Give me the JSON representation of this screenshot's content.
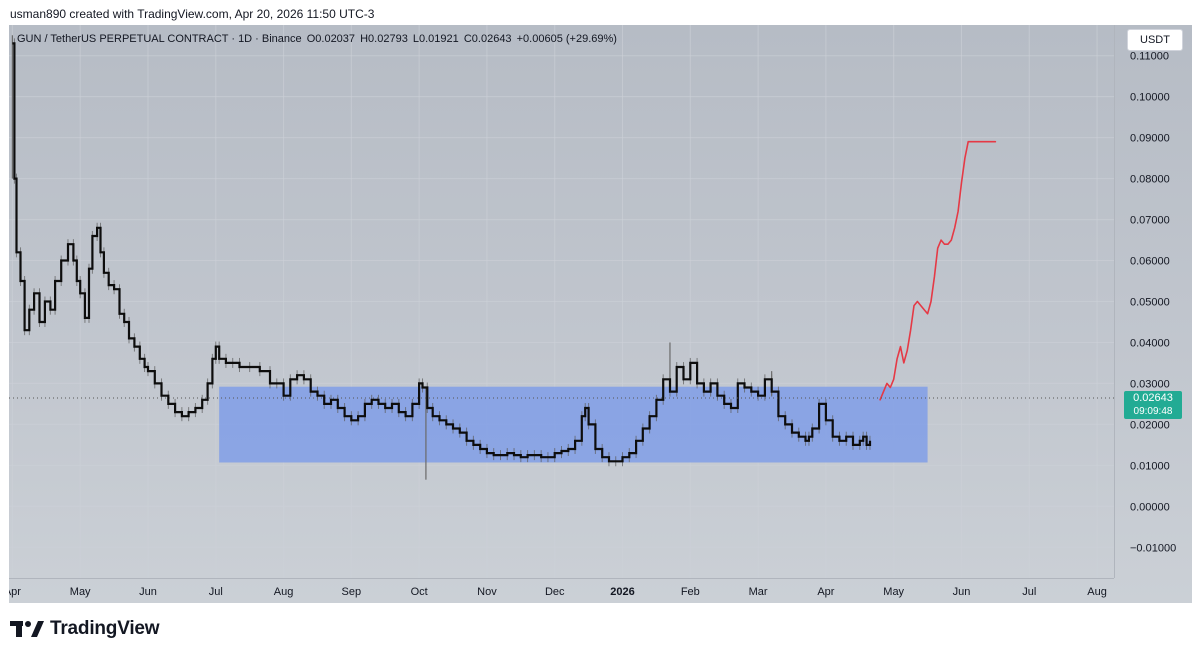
{
  "header": {
    "credit": "usman890 created with TradingView.com, Apr 20, 2026 11:50 UTC-3"
  },
  "legend": {
    "symbol": "GUN / TetherUS PERPETUAL CONTRACT · 1D · Binance",
    "open": "O0.02037",
    "high": "H0.02793",
    "low": "L0.01921",
    "close": "C0.02643",
    "change": "+0.00605 (+29.69%)"
  },
  "toolbar": {
    "currency_label": "USDT"
  },
  "last_price": {
    "value": "0.02643",
    "countdown": "09:09:48"
  },
  "brand": {
    "name": "TradingView"
  },
  "colors": {
    "candle": "#0d0d0d",
    "wick": "#5a5a5a",
    "range_box": "#7c9be8",
    "projection": "#e53945",
    "price_badge": "#22ab94",
    "grid": "#cdd1d8"
  },
  "chart_data": {
    "type": "line",
    "title": "",
    "xlabel": "",
    "ylabel": "",
    "y_tick_labels": [
      "0.11000",
      "0.10000",
      "0.09000",
      "0.08000",
      "0.07000",
      "0.06000",
      "0.05000",
      "0.04000",
      "0.03000",
      "0.02000",
      "0.01000",
      "0.00000",
      "−0.01000"
    ],
    "y_ticks": [
      0.11,
      0.1,
      0.09,
      0.08,
      0.07,
      0.06,
      0.05,
      0.04,
      0.03,
      0.02,
      0.01,
      0.0,
      -0.01
    ],
    "ylim": [
      -0.0175,
      0.1175
    ],
    "x_tick_labels": [
      "Apr",
      "May",
      "Jun",
      "Jul",
      "Aug",
      "Sep",
      "Oct",
      "Nov",
      "Dec",
      "2026",
      "Feb",
      "Mar",
      "Apr",
      "May",
      "Jun",
      "Jul",
      "Aug"
    ],
    "x_ticks_month_index": [
      0,
      1,
      2,
      3,
      4,
      5,
      6,
      7,
      8,
      9,
      10,
      11,
      12,
      13,
      14,
      15,
      16
    ],
    "xlim_month_index": [
      -0.05,
      16.25
    ],
    "grid": true,
    "series": [
      {
        "x_month_index": [
          0.0,
          0.03,
          0.06,
          0.12,
          0.18,
          0.25,
          0.32,
          0.4,
          0.48,
          0.56,
          0.63,
          0.72,
          0.82,
          0.9,
          0.95,
          1.0,
          1.07,
          1.13,
          1.18,
          1.25,
          1.3,
          1.35,
          1.42,
          1.5,
          1.58,
          1.65,
          1.72,
          1.8,
          1.88,
          1.95,
          2.0,
          2.1,
          2.2,
          2.3,
          2.4,
          2.5,
          2.6,
          2.7,
          2.8,
          2.88,
          2.95,
          3.0,
          3.05,
          3.15,
          3.25,
          3.35,
          3.5,
          3.65,
          3.8,
          3.9,
          4.0,
          4.1,
          4.2,
          4.3,
          4.4,
          4.5,
          4.6,
          4.7,
          4.8,
          4.9,
          5.0,
          5.1,
          5.2,
          5.3,
          5.4,
          5.5,
          5.6,
          5.7,
          5.8,
          5.9,
          6.0,
          6.05,
          6.12,
          6.2,
          6.3,
          6.4,
          6.5,
          6.6,
          6.7,
          6.8,
          6.9,
          7.0,
          7.1,
          7.2,
          7.3,
          7.4,
          7.5,
          7.6,
          7.7,
          7.8,
          7.9,
          8.0,
          8.1,
          8.2,
          8.3,
          8.4,
          8.45,
          8.5,
          8.6,
          8.7,
          8.8,
          8.9,
          9.0,
          9.1,
          9.2,
          9.3,
          9.4,
          9.5,
          9.6,
          9.7,
          9.8,
          9.9,
          10.0,
          10.1,
          10.2,
          10.3,
          10.4,
          10.5,
          10.6,
          10.7,
          10.8,
          10.9,
          11.0,
          11.1,
          11.2,
          11.3,
          11.4,
          11.5,
          11.6,
          11.7,
          11.75,
          11.8,
          11.9,
          12.0,
          12.1,
          12.2,
          12.3,
          12.4,
          12.5,
          12.55,
          12.6,
          12.65
        ],
        "y": [
          0.113,
          0.08,
          0.062,
          0.055,
          0.043,
          0.048,
          0.052,
          0.045,
          0.05,
          0.048,
          0.055,
          0.06,
          0.064,
          0.06,
          0.055,
          0.052,
          0.046,
          0.058,
          0.066,
          0.068,
          0.062,
          0.057,
          0.054,
          0.053,
          0.047,
          0.045,
          0.041,
          0.039,
          0.036,
          0.034,
          0.033,
          0.03,
          0.027,
          0.025,
          0.023,
          0.022,
          0.023,
          0.024,
          0.026,
          0.03,
          0.036,
          0.039,
          0.036,
          0.035,
          0.035,
          0.034,
          0.034,
          0.033,
          0.03,
          0.03,
          0.027,
          0.031,
          0.032,
          0.031,
          0.028,
          0.027,
          0.025,
          0.026,
          0.024,
          0.022,
          0.021,
          0.022,
          0.025,
          0.026,
          0.025,
          0.024,
          0.025,
          0.023,
          0.022,
          0.025,
          0.03,
          0.029,
          0.024,
          0.022,
          0.021,
          0.02,
          0.019,
          0.018,
          0.016,
          0.015,
          0.014,
          0.013,
          0.0125,
          0.0125,
          0.013,
          0.0125,
          0.012,
          0.0125,
          0.0125,
          0.012,
          0.012,
          0.013,
          0.0135,
          0.014,
          0.016,
          0.022,
          0.024,
          0.02,
          0.014,
          0.012,
          0.011,
          0.011,
          0.012,
          0.013,
          0.016,
          0.019,
          0.022,
          0.026,
          0.031,
          0.028,
          0.034,
          0.031,
          0.035,
          0.03,
          0.028,
          0.03,
          0.027,
          0.025,
          0.024,
          0.03,
          0.029,
          0.028,
          0.027,
          0.031,
          0.028,
          0.022,
          0.02,
          0.018,
          0.017,
          0.016,
          0.017,
          0.019,
          0.025,
          0.021,
          0.017,
          0.016,
          0.017,
          0.015,
          0.016,
          0.017,
          0.015,
          0.016,
          0.019,
          0.025
        ]
      },
      {
        "x_month_index": [
          12.8,
          12.9,
          12.95,
          13.0,
          13.05,
          13.1,
          13.15,
          13.2,
          13.25,
          13.3,
          13.35,
          13.4,
          13.45,
          13.5,
          13.55,
          13.6,
          13.65,
          13.7,
          13.75,
          13.8,
          13.85,
          13.9,
          13.95,
          14.0,
          14.05,
          14.1,
          14.15,
          14.2,
          14.25,
          14.3,
          14.35,
          14.4,
          14.45,
          14.5,
          14.55,
          14.6,
          14.65,
          14.7
        ],
        "y": [
          0.026,
          0.03,
          0.029,
          0.031,
          0.036,
          0.039,
          0.035,
          0.038,
          0.043,
          0.049,
          0.05,
          0.049,
          0.048,
          0.047,
          0.05,
          0.056,
          0.063,
          0.065,
          0.064,
          0.064,
          0.065,
          0.068,
          0.072,
          0.079,
          0.085,
          0.089,
          0.089,
          0.089,
          0.089,
          0.089,
          0.089,
          0.089,
          0.089,
          0.089,
          0.089,
          0.089,
          0.089,
          0.089
        ]
      }
    ],
    "annotations": [
      {
        "type": "rectangle",
        "x_month_index": [
          3.05,
          13.5
        ],
        "y": [
          0.0107,
          0.0292
        ]
      }
    ],
    "last_value": 0.02643
  }
}
